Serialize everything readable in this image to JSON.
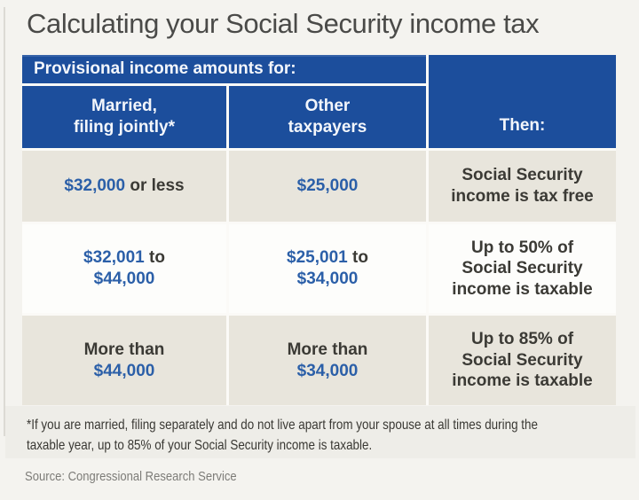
{
  "page": {
    "title": "Calculating your Social Security income tax",
    "footnote_line1": "*If you are married, filing separately and do not live apart from your spouse at all times during the",
    "footnote_line2": "taxable year, up to 85% of your Social Security income is taxable.",
    "source": "Source: Congressional Research Service"
  },
  "table": {
    "group_header": "Provisional income amounts for:",
    "headers": {
      "married_line1": "Married,",
      "married_line2": "filing jointly*",
      "other_line1": "Other",
      "other_line2": "taxpayers",
      "then": "Then:"
    },
    "rows": [
      {
        "married": {
          "amount": "$32,000",
          "suffix": " or less"
        },
        "other": {
          "amount": "$25,000"
        },
        "then": [
          "Social Security",
          "income is tax free"
        ]
      },
      {
        "married": {
          "amount": "$32,001",
          "suffix": " to",
          "amount2": "$44,000"
        },
        "other": {
          "amount": "$25,001",
          "suffix": " to",
          "amount2": "$34,000"
        },
        "then": [
          "Up to 50% of",
          "Social Security",
          "income is taxable"
        ]
      },
      {
        "married": {
          "prefix": "More than",
          "amount2": "$44,000"
        },
        "other": {
          "prefix": "More than",
          "amount2": "$34,000"
        },
        "then": [
          "Up to 85% of",
          "Social Security",
          "income is taxable"
        ]
      }
    ]
  },
  "colors": {
    "header_blue": "#1c4e9c",
    "amount_blue": "#2b5fa8",
    "row_beige": "#e8e5dc",
    "row_white": "#fdfdfb",
    "page_background": "#f4f3ef",
    "text_dark": "#3b3a35",
    "title_gray": "#4a4a48",
    "source_gray": "#7d7c78"
  },
  "chart_data": {
    "type": "table",
    "title": "Calculating your Social Security income tax",
    "column_group_header": "Provisional income amounts for:",
    "column_group_applies_to": [
      "Married, filing jointly*",
      "Other taxpayers"
    ],
    "columns": [
      "Married, filing jointly*",
      "Other taxpayers",
      "Then:"
    ],
    "rows": [
      [
        "$32,000 or less",
        "$25,000",
        "Social Security income is tax free"
      ],
      [
        "$32,001 to $44,000",
        "$25,001 to $34,000",
        "Up to 50% of Social Security income is taxable"
      ],
      [
        "More than $44,000",
        "More than $34,000",
        "Up to 85% of Social Security income is taxable"
      ]
    ],
    "footnote": "*If you are married, filing separately and do not live apart from your spouse at all times during the taxable year, up to 85% of your Social Security income is taxable.",
    "source": "Source: Congressional Research Service",
    "legend_position": "none",
    "grid": "off"
  }
}
